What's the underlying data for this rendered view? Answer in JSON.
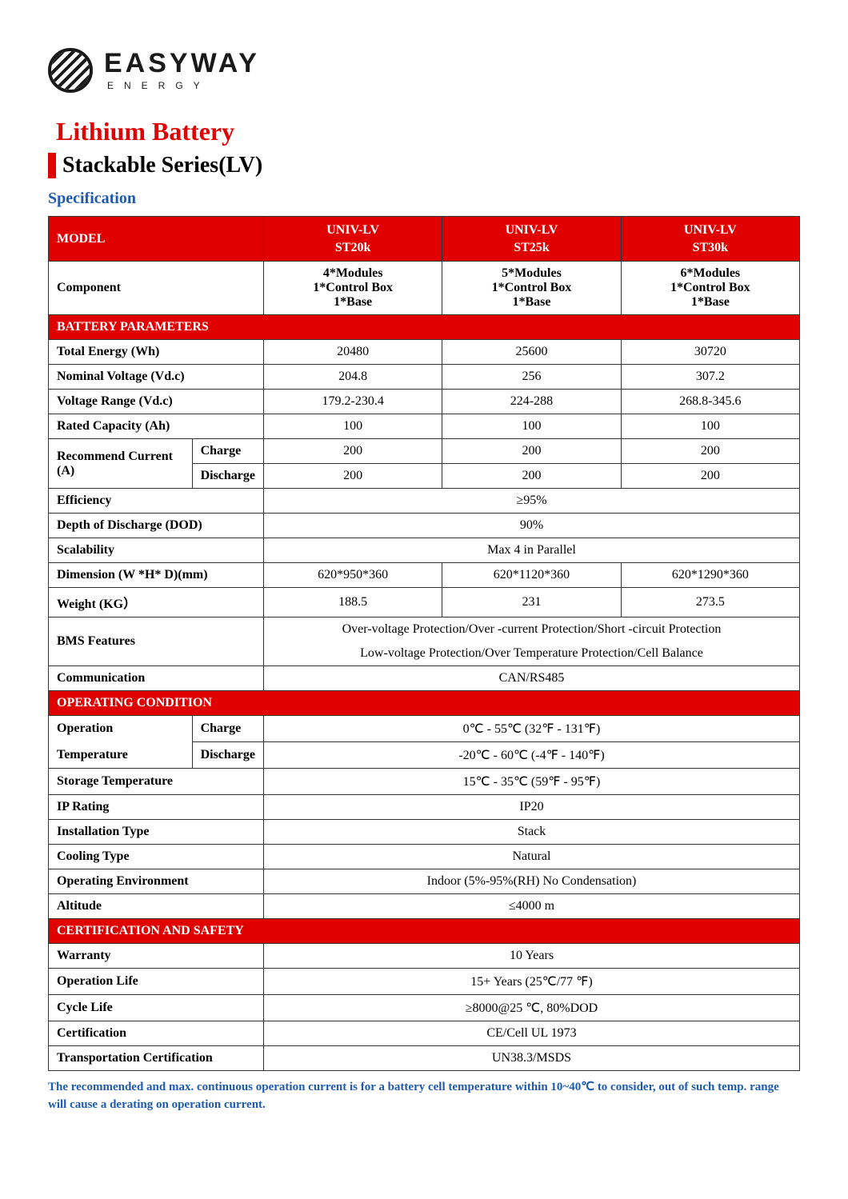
{
  "brand": {
    "name": "EASYWAY",
    "tagline": "ENERGY"
  },
  "title": "Lithium Battery",
  "subtitle": "Stackable Series(LV)",
  "specification_heading": "Specification",
  "models": {
    "label": "MODEL",
    "names": [
      "UNIV-LV\nST20k",
      "UNIV-LV\nST25k",
      "UNIV-LV\nST30k"
    ]
  },
  "component": {
    "label": "Component",
    "values": [
      "4*Modules\n1*Control Box\n1*Base",
      "5*Modules\n1*Control Box\n1*Base",
      "6*Modules\n1*Control Box\n1*Base"
    ]
  },
  "sections": {
    "battery": "BATTERY PARAMETERS",
    "operating": "OPERATING CONDITION",
    "cert": "CERTIFICATION AND SAFETY"
  },
  "battery_rows": {
    "total_energy": {
      "label": "Total Energy (Wh)",
      "v": [
        "20480",
        "25600",
        "30720"
      ]
    },
    "nominal_voltage": {
      "label": "Nominal Voltage (Vd.c)",
      "v": [
        "204.8",
        "256",
        "307.2"
      ]
    },
    "voltage_range": {
      "label": "Voltage Range (Vd.c)",
      "v": [
        "179.2-230.4",
        "224-288",
        "268.8-345.6"
      ]
    },
    "rated_capacity": {
      "label": "Rated Capacity (Ah)",
      "v": [
        "100",
        "100",
        "100"
      ]
    },
    "rec_current": {
      "label": "Recommend Current (A)",
      "charge": {
        "label": "Charge",
        "v": [
          "200",
          "200",
          "200"
        ]
      },
      "discharge": {
        "label": "Discharge",
        "v": [
          "200",
          "200",
          "200"
        ]
      }
    },
    "efficiency": {
      "label": "Efficiency",
      "merged": "≥95%"
    },
    "dod": {
      "label": "Depth of Discharge (DOD)",
      "merged": "90%"
    },
    "scalability": {
      "label": "Scalability",
      "merged": "Max 4 in Parallel"
    },
    "dimension": {
      "label": "Dimension (W *H* D)(mm)",
      "v": [
        "620*950*360",
        "620*1120*360",
        "620*1290*360"
      ]
    },
    "weight": {
      "label": "Weight (KG）",
      "v": [
        "188.5",
        "231",
        "273.5"
      ]
    },
    "bms": {
      "label": "BMS Features",
      "line1": "Over-voltage Protection/Over -current Protection/Short -circuit Protection",
      "line2": "Low-voltage Protection/Over Temperature Protection/Cell Balance"
    },
    "communication": {
      "label": "Communication",
      "merged": "CAN/RS485"
    }
  },
  "operating_rows": {
    "op_temp": {
      "label_l1": "Operation",
      "label_l2": "Temperature",
      "charge": {
        "label": "Charge",
        "merged": "0℃ - 55℃ (32℉ - 131℉)"
      },
      "discharge": {
        "label": "Discharge",
        "merged": "-20℃ - 60℃ (-4℉ - 140℉)"
      }
    },
    "storage_temp": {
      "label": "Storage Temperature",
      "merged": "15℃ - 35℃ (59℉ - 95℉)"
    },
    "ip": {
      "label": "IP Rating",
      "merged": "IP20"
    },
    "install": {
      "label": "Installation Type",
      "merged": "Stack"
    },
    "cooling": {
      "label": "Cooling Type",
      "merged": "Natural"
    },
    "env": {
      "label": "Operating Environment",
      "merged": "Indoor (5%-95%(RH) No Condensation)"
    },
    "altitude": {
      "label": "Altitude",
      "merged": "≤4000 m"
    }
  },
  "cert_rows": {
    "warranty": {
      "label": "Warranty",
      "merged": "10 Years"
    },
    "oplife": {
      "label": "Operation Life",
      "merged": "15+ Years  (25℃/77 ℉)"
    },
    "cycle": {
      "label": "Cycle Life",
      "merged": "≥8000@25 ℃, 80%DOD"
    },
    "cert": {
      "label": "Certification",
      "merged": "CE/Cell UL 1973"
    },
    "transport": {
      "label": "Transportation Certification",
      "merged": "UN38.3/MSDS"
    }
  },
  "footnote": "The recommended and max. continuous operation current is for a battery cell temperature within 10~40℃ to consider, out of such temp. range will cause a derating on operation current.",
  "colors": {
    "brand_red": "#e10000",
    "link_blue": "#1e5ab0",
    "border": "#333333"
  }
}
